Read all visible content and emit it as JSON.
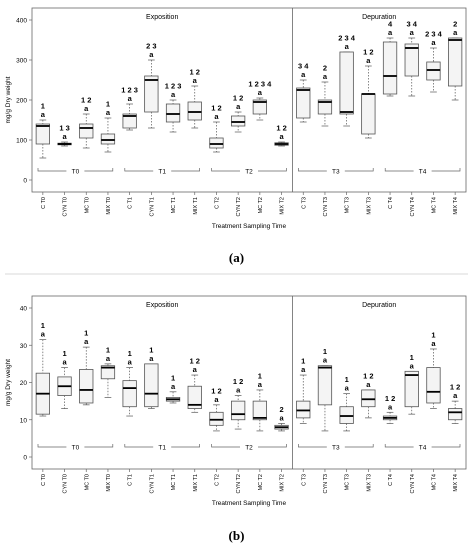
{
  "chart_data": [
    {
      "panel": "(a)",
      "type": "box",
      "ylabel": "mg/g Dry weight",
      "xlabel": "Treatment Sampling Time",
      "ylim": [
        0,
        400
      ],
      "yticks": [
        0,
        100,
        200,
        300,
        400
      ],
      "sections": [
        "Exposition",
        "Depuration"
      ],
      "groups": [
        "T0",
        "T1",
        "T2",
        "T3",
        "T4"
      ],
      "categories": [
        "C T0",
        "CYN T0",
        "MC T0",
        "MIX T0",
        "C T1",
        "CYN T1",
        "MC T1",
        "MIX T1",
        "C T2",
        "CYN T2",
        "MC T2",
        "MIX T2",
        "C T3",
        "CYN T3",
        "MC T3",
        "MIX T3",
        "C T4",
        "CYN T4",
        "MC T4",
        "MIX T4"
      ],
      "boxes": [
        {
          "min": 55,
          "q1": 90,
          "median": 135,
          "q3": 140,
          "max": 150
        },
        {
          "min": 85,
          "q1": 88,
          "median": 90,
          "q3": 92,
          "max": 95
        },
        {
          "min": 80,
          "q1": 105,
          "median": 130,
          "q3": 140,
          "max": 165
        },
        {
          "min": 70,
          "q1": 90,
          "median": 100,
          "q3": 115,
          "max": 155
        },
        {
          "min": 125,
          "q1": 130,
          "median": 160,
          "q3": 165,
          "max": 190
        },
        {
          "min": 130,
          "q1": 170,
          "median": 250,
          "q3": 260,
          "max": 300
        },
        {
          "min": 120,
          "q1": 145,
          "median": 165,
          "q3": 190,
          "max": 200
        },
        {
          "min": 130,
          "q1": 150,
          "median": 170,
          "q3": 195,
          "max": 235
        },
        {
          "min": 70,
          "q1": 80,
          "median": 90,
          "q3": 105,
          "max": 145
        },
        {
          "min": 120,
          "q1": 135,
          "median": 145,
          "q3": 160,
          "max": 170
        },
        {
          "min": 150,
          "q1": 165,
          "median": 195,
          "q3": 200,
          "max": 205
        },
        {
          "min": 85,
          "q1": 87,
          "median": 90,
          "q3": 93,
          "max": 95
        },
        {
          "min": 145,
          "q1": 155,
          "median": 225,
          "q3": 230,
          "max": 250
        },
        {
          "min": 135,
          "q1": 165,
          "median": 195,
          "q3": 200,
          "max": 245
        },
        {
          "min": 135,
          "q1": 165,
          "median": 170,
          "q3": 320,
          "max": 320
        },
        {
          "min": 105,
          "q1": 115,
          "median": 215,
          "q3": 215,
          "max": 285
        },
        {
          "min": 210,
          "q1": 215,
          "median": 260,
          "q3": 345,
          "max": 355
        },
        {
          "min": 210,
          "q1": 260,
          "median": 330,
          "q3": 340,
          "max": 355
        },
        {
          "min": 220,
          "q1": 250,
          "median": 275,
          "q3": 295,
          "max": 330
        },
        {
          "min": 200,
          "q1": 235,
          "median": 350,
          "q3": 355,
          "max": 355
        }
      ],
      "annotations": [
        {
          "top": "1",
          "bottom": "a"
        },
        {
          "top": "1 3",
          "bottom": "a"
        },
        {
          "top": "1 2",
          "bottom": "a"
        },
        {
          "top": "1",
          "bottom": "a"
        },
        {
          "top": "1 2 3",
          "bottom": "a"
        },
        {
          "top": "2 3",
          "bottom": "a"
        },
        {
          "top": "1 2 3",
          "bottom": "a"
        },
        {
          "top": "1 2",
          "bottom": "a"
        },
        {
          "top": "1 2",
          "bottom": "a"
        },
        {
          "top": "1 2",
          "bottom": "a"
        },
        {
          "top": "1 2 3 4",
          "bottom": "a"
        },
        {
          "top": "1 2",
          "bottom": "a"
        },
        {
          "top": "3 4",
          "bottom": "a"
        },
        {
          "top": "2",
          "bottom": "a"
        },
        {
          "top": "2 3 4",
          "bottom": "a"
        },
        {
          "top": "1 2",
          "bottom": "a"
        },
        {
          "top": "4",
          "bottom": "a"
        },
        {
          "top": "3 4",
          "bottom": "a"
        },
        {
          "top": "2 3 4",
          "bottom": "a"
        },
        {
          "top": "2",
          "bottom": "a"
        }
      ]
    },
    {
      "panel": "(b)",
      "type": "box",
      "ylabel": "mg/g Dry weight",
      "xlabel": "Treatment Sampling Time",
      "ylim": [
        0,
        40
      ],
      "yticks": [
        0,
        10,
        20,
        30,
        40
      ],
      "sections": [
        "Exposition",
        "Depuration"
      ],
      "groups": [
        "T0",
        "T1",
        "T2",
        "T3",
        "T4"
      ],
      "categories": [
        "C T0",
        "CYN T0",
        "MC T0",
        "MIX T0",
        "C T1",
        "CYN T1",
        "MC T1",
        "MIX T1",
        "C T2",
        "CYN T2",
        "MC T2",
        "MIX T2",
        "C T3",
        "CYN T3",
        "MC T3",
        "MIX T3",
        "C T4",
        "CYN T4",
        "MC T4",
        "MIX T4"
      ],
      "boxes": [
        {
          "min": 11,
          "q1": 11.5,
          "median": 17,
          "q3": 22.5,
          "max": 31.5
        },
        {
          "min": 13,
          "q1": 16.5,
          "median": 19,
          "q3": 21.5,
          "max": 24
        },
        {
          "min": 14,
          "q1": 14.5,
          "median": 18,
          "q3": 23.5,
          "max": 29.5
        },
        {
          "min": 16,
          "q1": 21,
          "median": 24,
          "q3": 24.5,
          "max": 25
        },
        {
          "min": 11,
          "q1": 13.5,
          "median": 18.5,
          "q3": 20.5,
          "max": 24
        },
        {
          "min": 13,
          "q1": 13.5,
          "median": 17,
          "q3": 25,
          "max": 25
        },
        {
          "min": 14.5,
          "q1": 15,
          "median": 15.5,
          "q3": 16,
          "max": 17.5
        },
        {
          "min": 12,
          "q1": 13,
          "median": 14,
          "q3": 19,
          "max": 22
        },
        {
          "min": 7,
          "q1": 8.5,
          "median": 10,
          "q3": 12,
          "max": 14
        },
        {
          "min": 7.5,
          "q1": 10,
          "median": 11.5,
          "q3": 15,
          "max": 16.5
        },
        {
          "min": 7,
          "q1": 10,
          "median": 10.5,
          "q3": 15,
          "max": 18
        },
        {
          "min": 7,
          "q1": 7.5,
          "median": 8,
          "q3": 8.5,
          "max": 9
        },
        {
          "min": 9,
          "q1": 10.5,
          "median": 12.5,
          "q3": 15,
          "max": 22
        },
        {
          "min": 7,
          "q1": 14,
          "median": 24,
          "q3": 24.5,
          "max": 24.5
        },
        {
          "min": 7,
          "q1": 9,
          "median": 11,
          "q3": 13.5,
          "max": 17
        },
        {
          "min": 10.5,
          "q1": 13.5,
          "median": 15.5,
          "q3": 18,
          "max": 18
        },
        {
          "min": 9,
          "q1": 10,
          "median": 10.5,
          "q3": 11,
          "max": 12
        },
        {
          "min": 11.5,
          "q1": 13.5,
          "median": 22,
          "q3": 23,
          "max": 23
        },
        {
          "min": 13,
          "q1": 14.5,
          "median": 17.5,
          "q3": 24,
          "max": 29
        },
        {
          "min": 9,
          "q1": 10,
          "median": 12,
          "q3": 13,
          "max": 15
        }
      ],
      "annotations": [
        {
          "top": "1",
          "bottom": "a"
        },
        {
          "top": "1",
          "bottom": "a"
        },
        {
          "top": "1",
          "bottom": "a"
        },
        {
          "top": "1",
          "bottom": "a"
        },
        {
          "top": "1",
          "bottom": "a"
        },
        {
          "top": "1",
          "bottom": "a"
        },
        {
          "top": "1",
          "bottom": "a"
        },
        {
          "top": "1 2",
          "bottom": "a"
        },
        {
          "top": "1 2",
          "bottom": "a"
        },
        {
          "top": "1 2",
          "bottom": "a"
        },
        {
          "top": "1",
          "bottom": "a"
        },
        {
          "top": "2",
          "bottom": "a"
        },
        {
          "top": "1",
          "bottom": "a"
        },
        {
          "top": "1",
          "bottom": "a"
        },
        {
          "top": "1",
          "bottom": "a"
        },
        {
          "top": "1 2",
          "bottom": "a"
        },
        {
          "top": "1 2",
          "bottom": "a"
        },
        {
          "top": "1",
          "bottom": "a"
        },
        {
          "top": "1",
          "bottom": "a"
        },
        {
          "top": "1 2",
          "bottom": "a"
        }
      ]
    }
  ],
  "captions": {
    "a": "(a)",
    "b": "(b)"
  },
  "colors": {
    "box_fill": "#f4f4f4",
    "stroke": "#555555",
    "median": "#000000",
    "text": "#000000",
    "axis": "#666666"
  }
}
